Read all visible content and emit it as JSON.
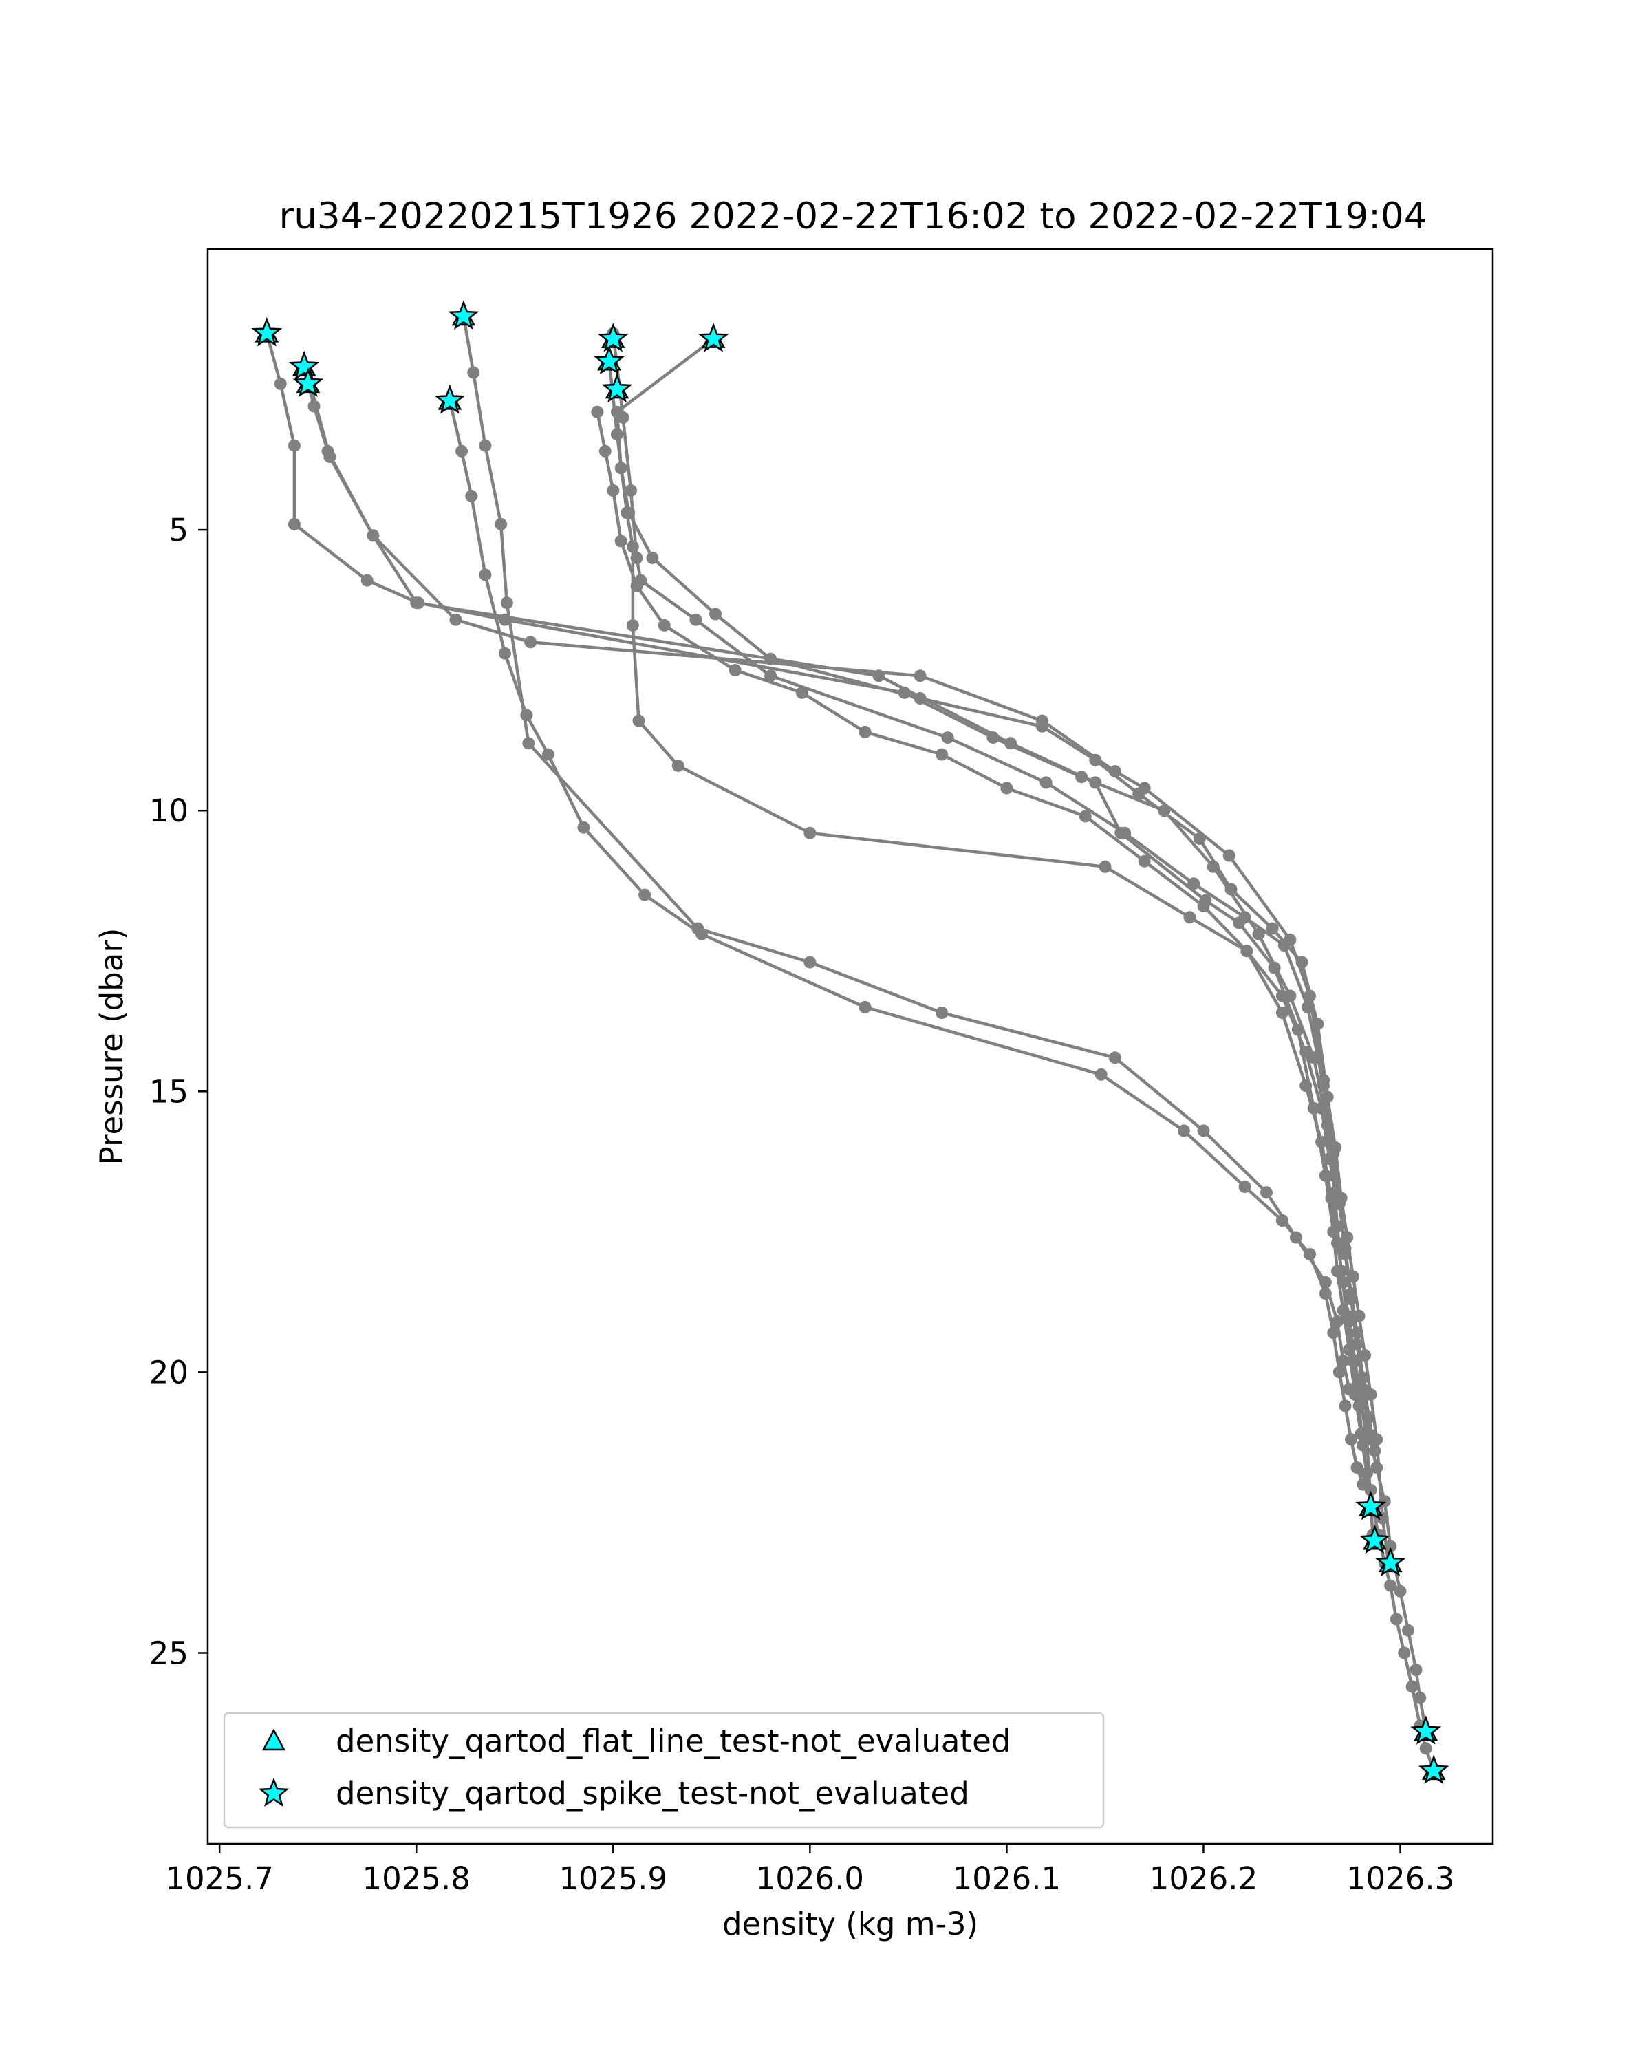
{
  "chart_data": {
    "type": "scatter",
    "title": "ru34-20220215T1926 2022-02-22T16:02 to 2022-02-22T19:04",
    "xlabel": "density (kg m-3)",
    "ylabel": "Pressure (dbar)",
    "xlim": [
      1025.694,
      1026.347
    ],
    "ylim": [
      28.4,
      0.0
    ],
    "y_inverted": true,
    "grid": false,
    "legend_position": "lower-left",
    "x_ticks": [
      1025.7,
      1025.8,
      1025.9,
      1026.0,
      1026.1,
      1026.2,
      1026.3
    ],
    "x_tick_labels": [
      "1025.7",
      "1025.8",
      "1025.9",
      "1026.0",
      "1026.1",
      "1026.2",
      "1026.3"
    ],
    "y_ticks": [
      5,
      10,
      15,
      20,
      25
    ],
    "y_tick_labels": [
      "5",
      "10",
      "15",
      "20",
      "25"
    ],
    "line_color": "#808080",
    "marker_fill": "#00ffff",
    "marker_edge": "#000000",
    "legend": [
      {
        "label": "density_qartod_flat_line_test-not_evaluated",
        "marker": "triangle"
      },
      {
        "label": "density_qartod_spike_test-not_evaluated",
        "marker": "star"
      }
    ],
    "profiles": [
      {
        "x": [
          1025.724,
          1025.731,
          1025.738,
          1025.738,
          1025.775,
          1025.801,
          1025.845,
          1026.048,
          1026.093,
          1026.138,
          1026.18,
          1026.205,
          1026.228,
          1026.244,
          1026.256,
          1026.263,
          1026.266,
          1026.268,
          1026.27,
          1026.273,
          1026.276,
          1026.279,
          1026.281,
          1026.283,
          1026.285,
          1026.287
        ],
        "y": [
          1.5,
          2.4,
          3.5,
          4.9,
          5.9,
          6.3,
          6.6,
          7.9,
          8.7,
          9.4,
          10.0,
          11.0,
          12.2,
          13.3,
          14.4,
          15.6,
          16.5,
          17.4,
          18.2,
          19.0,
          19.8,
          20.6,
          21.3,
          21.8,
          22.1,
          22.4
        ]
      },
      {
        "x": [
          1025.743,
          1025.748,
          1025.755,
          1025.778,
          1025.82,
          1025.858,
          1026.056,
          1026.118,
          1026.155,
          1026.17,
          1026.213,
          1026.244,
          1026.254,
          1026.261,
          1026.266,
          1026.269,
          1026.272,
          1026.275,
          1026.278,
          1026.281,
          1026.284,
          1026.288,
          1026.292,
          1026.295,
          1026.3,
          1026.304,
          1026.308,
          1026.31,
          1026.313
        ],
        "y": [
          2.1,
          2.8,
          3.6,
          5.1,
          6.6,
          7.0,
          7.6,
          8.4,
          9.3,
          9.6,
          10.8,
          12.3,
          13.3,
          14.8,
          16.0,
          16.9,
          17.9,
          18.7,
          19.5,
          20.3,
          21.1,
          21.7,
          22.3,
          23.1,
          23.9,
          24.6,
          25.3,
          25.8,
          26.4
        ]
      },
      {
        "x": [
          1025.746,
          1025.756,
          1025.778,
          1025.8,
          1026.035,
          1026.102,
          1026.145,
          1026.158,
          1026.201,
          1026.218,
          1026.236,
          1026.248,
          1026.256,
          1026.262,
          1026.266,
          1026.268,
          1026.271,
          1026.274,
          1026.277,
          1026.28,
          1026.283,
          1026.286,
          1026.289,
          1026.292,
          1026.295,
          1026.298,
          1026.302,
          1026.306,
          1026.31,
          1026.313,
          1026.317
        ],
        "y": [
          2.4,
          3.7,
          5.1,
          6.3,
          7.6,
          8.8,
          9.5,
          10.4,
          11.6,
          12.0,
          12.8,
          13.9,
          15.3,
          16.5,
          17.5,
          18.2,
          18.9,
          19.6,
          20.4,
          21.1,
          21.8,
          22.4,
          22.9,
          23.4,
          23.8,
          24.4,
          25.0,
          25.6,
          26.3,
          26.7,
          27.1
        ]
      },
      {
        "x": [
          1025.824,
          1025.829,
          1025.835,
          1025.843,
          1025.846,
          1025.857,
          1025.943,
          1026.0,
          1026.067,
          1026.155,
          1026.2,
          1026.232,
          1026.247,
          1026.262,
          1026.268,
          1026.271,
          1026.274
        ],
        "y": [
          1.2,
          2.2,
          3.5,
          4.9,
          6.3,
          8.8,
          12.1,
          12.7,
          13.6,
          14.4,
          15.7,
          16.8,
          17.6,
          18.4,
          19.1,
          19.8,
          20.3
        ]
      },
      {
        "x": [
          1025.817,
          1025.823,
          1025.828,
          1025.835,
          1025.845,
          1025.856,
          1025.867,
          1025.885,
          1025.916,
          1025.945,
          1026.028,
          1026.148,
          1026.19,
          1026.221,
          1026.24,
          1026.254,
          1026.262,
          1026.266,
          1026.269,
          1026.272,
          1026.275,
          1026.278,
          1026.281
        ],
        "y": [
          2.7,
          3.6,
          4.4,
          5.8,
          7.2,
          8.3,
          9.0,
          10.3,
          11.5,
          12.2,
          13.5,
          14.7,
          15.7,
          16.7,
          17.3,
          17.9,
          18.6,
          19.3,
          20.0,
          20.6,
          21.2,
          21.7,
          22.0
        ]
      },
      {
        "x": [
          1025.9,
          1025.905,
          1025.909,
          1025.912,
          1025.914,
          1025.942,
          1025.98,
          1026.07,
          1026.12,
          1026.16,
          1026.195,
          1026.221,
          1026.241,
          1026.253,
          1026.261,
          1026.266,
          1026.269,
          1026.272,
          1026.275,
          1026.278,
          1026.281,
          1026.284,
          1026.287
        ],
        "y": [
          1.5,
          3.0,
          4.3,
          5.5,
          5.9,
          6.6,
          7.6,
          8.7,
          9.5,
          10.4,
          11.3,
          11.9,
          12.4,
          13.5,
          14.9,
          16.1,
          17.0,
          17.8,
          18.6,
          19.3,
          20.1,
          20.8,
          21.4
        ]
      },
      {
        "x": [
          1025.898,
          1025.902,
          1025.907,
          1025.91,
          1025.91,
          1025.913,
          1025.933,
          1026.0,
          1026.15,
          1026.193,
          1026.222,
          1026.24,
          1026.252,
          1026.26,
          1026.265,
          1026.268,
          1026.271,
          1026.274,
          1026.277,
          1026.28,
          1026.283,
          1026.286
        ],
        "y": [
          2.0,
          3.3,
          4.7,
          5.3,
          6.7,
          8.4,
          9.2,
          10.4,
          11.0,
          11.9,
          12.5,
          13.6,
          14.9,
          15.9,
          16.9,
          17.7,
          18.4,
          19.1,
          19.8,
          20.5,
          21.2,
          22.9
        ]
      },
      {
        "x": [
          1025.951,
          1025.902,
          1025.904,
          1025.908,
          1025.92,
          1025.952,
          1025.98,
          1026.056,
          1026.118,
          1026.145,
          1026.167,
          1026.198,
          1026.214,
          1026.235,
          1026.25,
          1026.258,
          1026.263,
          1026.267,
          1026.27,
          1026.273,
          1026.276,
          1026.279,
          1026.282,
          1026.285,
          1026.288,
          1026.291,
          1026.294
        ],
        "y": [
          1.6,
          2.9,
          3.9,
          4.7,
          5.5,
          6.5,
          7.3,
          8.0,
          8.5,
          9.1,
          9.7,
          10.5,
          11.4,
          12.1,
          12.7,
          13.8,
          15.1,
          16.0,
          16.9,
          17.6,
          18.3,
          19.0,
          19.7,
          20.4,
          21.2,
          22.6,
          23.4
        ]
      },
      {
        "x": [
          1025.892,
          1025.896,
          1025.9,
          1025.904,
          1025.912,
          1025.926,
          1025.962,
          1025.996,
          1026.028,
          1026.067,
          1026.1,
          1026.14,
          1026.17,
          1026.2,
          1026.222,
          1026.24,
          1026.252,
          1026.26,
          1026.264,
          1026.267
        ],
        "y": [
          2.9,
          3.6,
          4.3,
          5.2,
          6.0,
          6.7,
          7.5,
          7.9,
          8.6,
          9.0,
          9.6,
          10.1,
          10.9,
          11.7,
          12.5,
          13.3,
          14.3,
          15.3,
          16.2,
          16.8
        ]
      }
    ],
    "spike_flags": {
      "x": [
        1025.724,
        1025.743,
        1025.745,
        1025.824,
        1025.817,
        1025.9,
        1025.898,
        1025.902,
        1025.951,
        1026.285,
        1026.287,
        1026.295,
        1026.313,
        1026.317
      ],
      "y": [
        1.5,
        2.1,
        2.4,
        1.2,
        2.7,
        1.6,
        2.0,
        2.5,
        1.6,
        22.4,
        23.0,
        23.4,
        26.4,
        27.1
      ]
    },
    "flat_line_flags": {
      "x": [
        1025.724,
        1025.743,
        1025.745,
        1025.824,
        1025.817,
        1025.9,
        1025.898,
        1025.902,
        1025.951,
        1026.285,
        1026.287,
        1026.295,
        1026.313,
        1026.317
      ],
      "y": [
        1.5,
        2.1,
        2.4,
        1.2,
        2.7,
        1.6,
        2.0,
        2.5,
        1.6,
        22.4,
        23.0,
        23.4,
        26.4,
        27.1
      ]
    }
  }
}
